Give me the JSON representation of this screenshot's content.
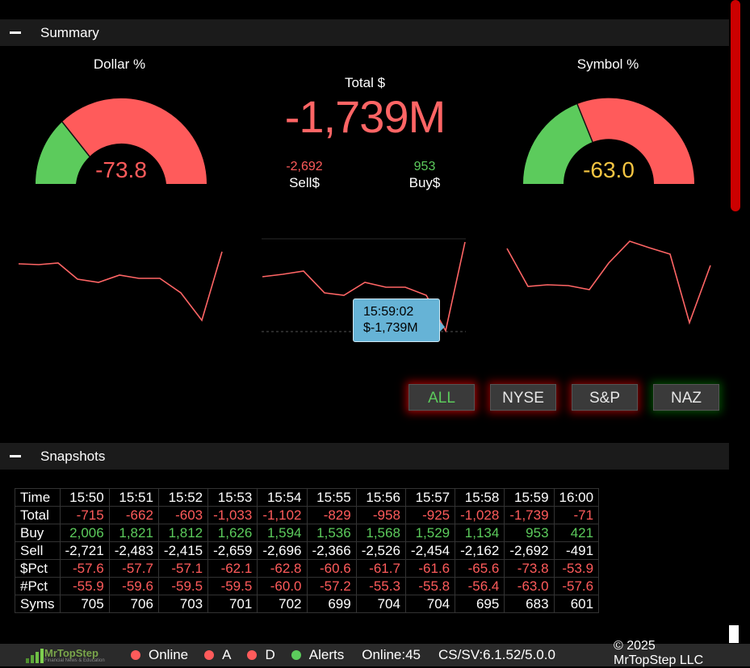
{
  "summary": {
    "header": "Summary",
    "dollar_title": "Dollar %",
    "dollar_value": "-73.8",
    "dollar_level": -73.8,
    "symbol_title": "Symbol %",
    "symbol_value": "-63.0",
    "symbol_level": -63.0,
    "total_label": "Total $",
    "total_value": "-1,739M",
    "sell_value": "-2,692",
    "sell_label": "Sell$",
    "buy_value": "953",
    "buy_label": "Buy$",
    "tooltip_time": "15:59:02",
    "tooltip_value": "$-1,739M"
  },
  "filters": [
    "ALL",
    "NYSE",
    "S&P",
    "NAZ"
  ],
  "snapshots": {
    "header": "Snapshots",
    "row_labels": [
      "Time",
      "Total",
      "Buy",
      "Sell",
      "$Pct",
      "#Pct",
      "Syms"
    ],
    "times": [
      "15:50",
      "15:51",
      "15:52",
      "15:53",
      "15:54",
      "15:55",
      "15:56",
      "15:57",
      "15:58",
      "15:59",
      "16:00"
    ],
    "total": [
      "-715",
      "-662",
      "-603",
      "-1,033",
      "-1,102",
      "-829",
      "-958",
      "-925",
      "-1,028",
      "-1,739",
      "-71"
    ],
    "buy": [
      "2,006",
      "1,821",
      "1,812",
      "1,626",
      "1,594",
      "1,536",
      "1,568",
      "1,529",
      "1,134",
      "953",
      "421"
    ],
    "sell": [
      "-2,721",
      "-2,483",
      "-2,415",
      "-2,659",
      "-2,696",
      "-2,366",
      "-2,526",
      "-2,454",
      "-2,162",
      "-2,692",
      "-491"
    ],
    "dpct": [
      "-57.6",
      "-57.7",
      "-57.1",
      "-62.1",
      "-62.8",
      "-60.6",
      "-61.7",
      "-61.6",
      "-65.6",
      "-73.8",
      "-53.9"
    ],
    "npct": [
      "-55.9",
      "-59.6",
      "-59.5",
      "-59.5",
      "-60.0",
      "-57.2",
      "-55.3",
      "-55.8",
      "-56.4",
      "-63.0",
      "-57.6"
    ],
    "syms": [
      "705",
      "706",
      "703",
      "701",
      "702",
      "699",
      "704",
      "704",
      "695",
      "683",
      "601"
    ]
  },
  "statusbar": {
    "logo_text": "MrTopStep",
    "logo_sub": "Financial News & Education",
    "online": "Online",
    "a": "A",
    "d": "D",
    "alerts": "Alerts",
    "online_count": "Online:45",
    "version": "CS/SV:6.1.52/5.0.0",
    "copyright_line1": "© 2025",
    "copyright_line2": "MrTopStep LLC"
  },
  "colors": {
    "red": "#ff5b5b",
    "green": "#5ccb5c",
    "yellow": "#f5c542",
    "tooltip": "#66b3d6"
  }
}
